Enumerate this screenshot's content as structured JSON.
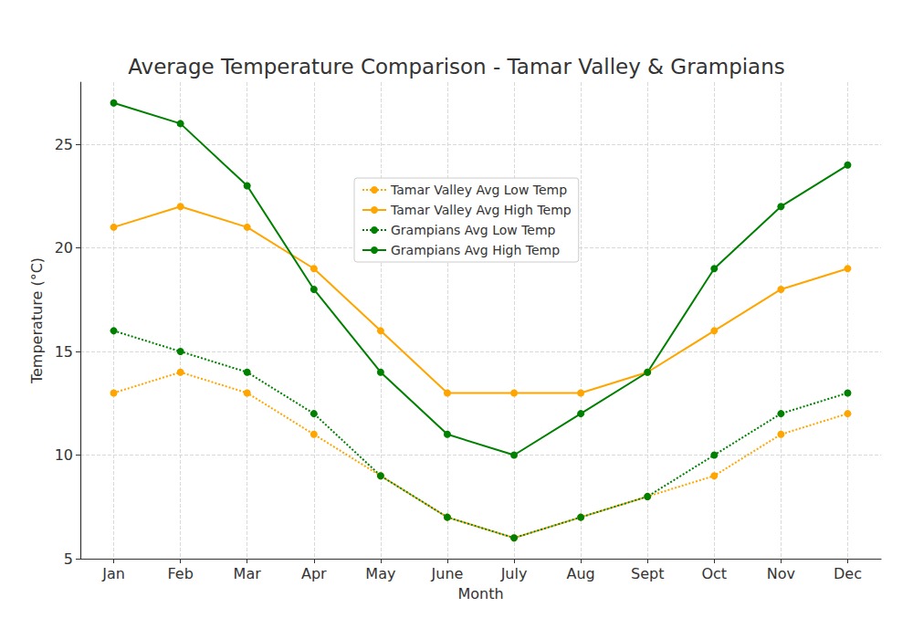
{
  "chart_data": {
    "type": "line",
    "title": "Average Temperature Comparison - Tamar Valley & Grampians",
    "x_label": "Month",
    "y_label": "Temperature (°C)",
    "categories": [
      "Jan",
      "Feb",
      "Mar",
      "Apr",
      "May",
      "June",
      "July",
      "Aug",
      "Sept",
      "Oct",
      "Nov",
      "Dec"
    ],
    "series": [
      {
        "name": "Tamar Valley Avg Low Temp",
        "color": "#ffa500",
        "line_style": "dotted",
        "marker": "circle",
        "values": [
          13,
          14,
          13,
          11,
          9,
          7,
          6,
          7,
          8,
          9,
          11,
          12
        ]
      },
      {
        "name": "Tamar Valley Avg High Temp",
        "color": "#ffa500",
        "line_style": "solid",
        "marker": "circle",
        "values": [
          21,
          22,
          21,
          19,
          16,
          13,
          13,
          13,
          14,
          16,
          18,
          19
        ]
      },
      {
        "name": "Grampians Avg Low Temp",
        "color": "#008000",
        "line_style": "dotted",
        "marker": "circle",
        "values": [
          16,
          15,
          14,
          12,
          9,
          7,
          6,
          7,
          8,
          10,
          12,
          13
        ]
      },
      {
        "name": "Grampians Avg High Temp",
        "color": "#008000",
        "line_style": "solid",
        "marker": "circle",
        "values": [
          27,
          26,
          23,
          18,
          14,
          11,
          10,
          12,
          14,
          19,
          22,
          24
        ]
      }
    ],
    "ylim": [
      5,
      28
    ],
    "yticks": [
      5,
      10,
      15,
      20,
      25
    ],
    "grid": true,
    "legend": "center"
  }
}
